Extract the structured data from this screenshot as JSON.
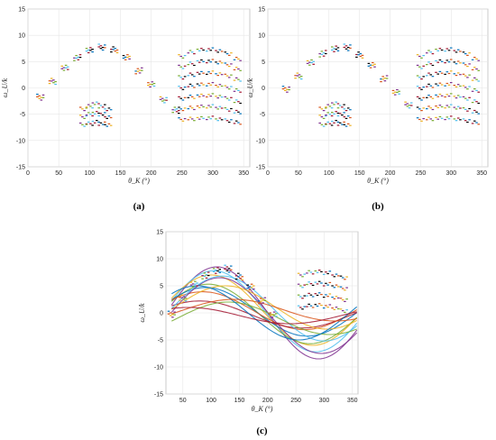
{
  "chart_data": [
    {
      "type": "scatter",
      "panel_label": "(a)",
      "xlabel": "θ_K (°)",
      "ylabel": "ω_U/k",
      "xlim": [
        0,
        360
      ],
      "ylim": [
        -15,
        15
      ],
      "xticks": [
        "0",
        "50",
        "100",
        "150",
        "200",
        "250",
        "300",
        "350"
      ],
      "yticks": [
        "15",
        "10",
        "5",
        "0",
        "-5",
        "-10",
        "-15"
      ],
      "grid": true,
      "series": [
        {
          "x": [
            20,
            40,
            60,
            80,
            100,
            120,
            140,
            160,
            180,
            200,
            220,
            240
          ],
          "y": [
            -1.5,
            1.5,
            4,
            6,
            7.5,
            8,
            7.5,
            6,
            3.5,
            1,
            -2,
            -4
          ]
        },
        {
          "x": [
            20,
            40,
            60,
            80,
            100,
            120,
            140,
            160,
            180,
            200,
            220,
            240
          ],
          "y": [
            -2,
            1,
            3.5,
            5.5,
            7,
            7.5,
            7,
            5.5,
            3,
            0.5,
            -2.5,
            -4.5
          ]
        },
        {
          "x": [
            250,
            265,
            280,
            295,
            310,
            325,
            340
          ],
          "y": [
            6,
            6.8,
            7.2,
            7.3,
            7.1,
            6.5,
            5.5
          ]
        },
        {
          "x": [
            250,
            265,
            280,
            295,
            310,
            325,
            340
          ],
          "y": [
            4,
            4.6,
            5,
            5.1,
            4.9,
            4.4,
            3.6
          ]
        },
        {
          "x": [
            250,
            265,
            280,
            295,
            310,
            325,
            340
          ],
          "y": [
            2,
            2.5,
            2.8,
            2.9,
            2.7,
            2.3,
            1.6
          ]
        },
        {
          "x": [
            250,
            265,
            280,
            295,
            310,
            325,
            340
          ],
          "y": [
            0,
            0.4,
            0.6,
            0.7,
            0.5,
            0.1,
            -0.5
          ]
        },
        {
          "x": [
            250,
            265,
            280,
            295,
            310,
            325,
            340
          ],
          "y": [
            -2,
            -1.7,
            -1.5,
            -1.4,
            -1.6,
            -2,
            -2.6
          ]
        },
        {
          "x": [
            250,
            265,
            280,
            295,
            310,
            325,
            340
          ],
          "y": [
            -4,
            -3.8,
            -3.6,
            -3.5,
            -3.7,
            -4.1,
            -4.6
          ]
        },
        {
          "x": [
            250,
            265,
            280,
            295,
            310,
            325,
            340
          ],
          "y": [
            -6,
            -5.9,
            -5.8,
            -5.7,
            -5.9,
            -6.2,
            -6.6
          ]
        },
        {
          "x": [
            90,
            100,
            110,
            120,
            130
          ],
          "y": [
            -4,
            -3.5,
            -3,
            -3.5,
            -4
          ]
        },
        {
          "x": [
            90,
            100,
            110,
            120,
            130
          ],
          "y": [
            -5.5,
            -5,
            -4.8,
            -5,
            -5.5
          ]
        },
        {
          "x": [
            90,
            100,
            110,
            120,
            130
          ],
          "y": [
            -7,
            -6.8,
            -6.5,
            -6.8,
            -7
          ]
        }
      ]
    },
    {
      "type": "scatter",
      "panel_label": "(b)",
      "xlabel": "θ_K (°)",
      "ylabel": "ω_U/k",
      "xlim": [
        0,
        360
      ],
      "ylim": [
        -15,
        15
      ],
      "xticks": [
        "0",
        "50",
        "100",
        "150",
        "200",
        "250",
        "300",
        "350"
      ],
      "yticks": [
        "15",
        "10",
        "5",
        "0",
        "-5",
        "-10",
        "-15"
      ],
      "grid": true,
      "series": [
        {
          "x": [
            30,
            50,
            70,
            90,
            110,
            130,
            150,
            170,
            190,
            210,
            230
          ],
          "y": [
            0,
            2.5,
            5,
            6.8,
            7.8,
            8,
            6.5,
            4.5,
            2,
            -0.5,
            -3
          ]
        },
        {
          "x": [
            30,
            50,
            70,
            90,
            110,
            130,
            150,
            170,
            190,
            210,
            230
          ],
          "y": [
            -0.5,
            2,
            4.5,
            6.2,
            7.2,
            7.4,
            6,
            4,
            1.5,
            -1,
            -3.5
          ]
        },
        {
          "x": [
            250,
            265,
            280,
            295,
            310,
            325,
            340
          ],
          "y": [
            6,
            6.8,
            7.2,
            7.3,
            7.1,
            6.5,
            5.5
          ]
        },
        {
          "x": [
            250,
            265,
            280,
            295,
            310,
            325,
            340
          ],
          "y": [
            4,
            4.6,
            5,
            5.1,
            4.9,
            4.4,
            3.6
          ]
        },
        {
          "x": [
            250,
            265,
            280,
            295,
            310,
            325,
            340
          ],
          "y": [
            2,
            2.5,
            2.8,
            2.9,
            2.7,
            2.3,
            1.6
          ]
        },
        {
          "x": [
            250,
            265,
            280,
            295,
            310,
            325,
            340
          ],
          "y": [
            0,
            0.4,
            0.6,
            0.7,
            0.5,
            0.1,
            -0.5
          ]
        },
        {
          "x": [
            250,
            265,
            280,
            295,
            310,
            325,
            340
          ],
          "y": [
            -2,
            -1.7,
            -1.5,
            -1.4,
            -1.6,
            -2,
            -2.6
          ]
        },
        {
          "x": [
            250,
            265,
            280,
            295,
            310,
            325,
            340
          ],
          "y": [
            -4,
            -3.8,
            -3.6,
            -3.5,
            -3.7,
            -4.1,
            -4.6
          ]
        },
        {
          "x": [
            250,
            265,
            280,
            295,
            310,
            325,
            340
          ],
          "y": [
            -6,
            -5.9,
            -5.8,
            -5.7,
            -5.9,
            -6.2,
            -6.6
          ]
        },
        {
          "x": [
            90,
            100,
            110,
            120,
            130
          ],
          "y": [
            -4,
            -3.5,
            -3,
            -3.5,
            -4
          ]
        },
        {
          "x": [
            90,
            100,
            110,
            120,
            130
          ],
          "y": [
            -5.5,
            -5,
            -4.8,
            -5,
            -5.5
          ]
        },
        {
          "x": [
            90,
            100,
            110,
            120,
            130
          ],
          "y": [
            -7,
            -6.8,
            -6.5,
            -6.8,
            -7
          ]
        }
      ]
    },
    {
      "type": "line",
      "panel_label": "(c)",
      "xlabel": "θ_K (°)",
      "ylabel": "ω_U/k",
      "xlim": [
        20,
        360
      ],
      "ylim": [
        -15,
        15
      ],
      "xticks": [
        "50",
        "100",
        "150",
        "200",
        "250",
        "300",
        "350"
      ],
      "yticks": [
        "15",
        "10",
        "5",
        "0",
        "-5",
        "-10",
        "-15"
      ],
      "grid": true,
      "scatter_series": [
        {
          "x": [
            30,
            50,
            70,
            90,
            110,
            130,
            150,
            170,
            190,
            210
          ],
          "y": [
            0,
            3,
            5.5,
            7.2,
            8.2,
            8.5,
            7,
            5,
            2.5,
            0
          ]
        },
        {
          "x": [
            30,
            50,
            70,
            90,
            110,
            130,
            150,
            170,
            190,
            210
          ],
          "y": [
            -0.5,
            2.5,
            5,
            6.6,
            7.6,
            7.8,
            6.4,
            4.4,
            2,
            -0.5
          ]
        },
        {
          "x": [
            260,
            275,
            290,
            305,
            320,
            335
          ],
          "y": [
            7,
            7.5,
            7.6,
            7.4,
            7,
            6.5
          ]
        },
        {
          "x": [
            260,
            275,
            290,
            305,
            320,
            335
          ],
          "y": [
            5,
            5.4,
            5.5,
            5.3,
            5,
            4.5
          ]
        },
        {
          "x": [
            260,
            275,
            290,
            305,
            320,
            335
          ],
          "y": [
            3,
            3.3,
            3.4,
            3.2,
            2.9,
            2.4
          ]
        },
        {
          "x": [
            260,
            275,
            290,
            305,
            320,
            335
          ],
          "y": [
            1,
            1.3,
            1.4,
            1.2,
            0.9,
            0.4
          ]
        }
      ],
      "curves": [
        {
          "amplitude": 8.5,
          "phase": 110,
          "offset": 0,
          "color": "#7e2f8e"
        },
        {
          "amplitude": 7.5,
          "phase": 105,
          "offset": 0.3,
          "color": "#4dbeee"
        },
        {
          "amplitude": 6.5,
          "phase": 100,
          "offset": 0.5,
          "color": "#edb120"
        },
        {
          "amplitude": 5.5,
          "phase": 95,
          "offset": -0.2,
          "color": "#77ac30"
        },
        {
          "amplitude": 4.5,
          "phase": 90,
          "offset": 0.2,
          "color": "#0072bd"
        },
        {
          "amplitude": 3.5,
          "phase": 85,
          "offset": 0.4,
          "color": "#d95319"
        },
        {
          "amplitude": 2.5,
          "phase": 80,
          "offset": -0.3,
          "color": "#a2142f"
        },
        {
          "amplitude": 7,
          "phase": 115,
          "offset": -0.5,
          "color": "#7e2f8e"
        },
        {
          "amplitude": 6,
          "phase": 120,
          "offset": 0.8,
          "color": "#4dbeee"
        },
        {
          "amplitude": 4,
          "phase": 125,
          "offset": 1,
          "color": "#edb120"
        },
        {
          "amplitude": 3,
          "phase": 130,
          "offset": -1,
          "color": "#77ac30"
        },
        {
          "amplitude": 5,
          "phase": 75,
          "offset": 0,
          "color": "#0072bd"
        },
        {
          "amplitude": 2,
          "phase": 140,
          "offset": 0.5,
          "color": "#d95319"
        },
        {
          "amplitude": 1.5,
          "phase": 60,
          "offset": -0.5,
          "color": "#a2142f"
        }
      ]
    }
  ],
  "marker_colors": [
    "#0072bd",
    "#d95319",
    "#edb120",
    "#7e2f8e",
    "#77ac30",
    "#4dbeee",
    "#a2142f",
    "#000000"
  ]
}
